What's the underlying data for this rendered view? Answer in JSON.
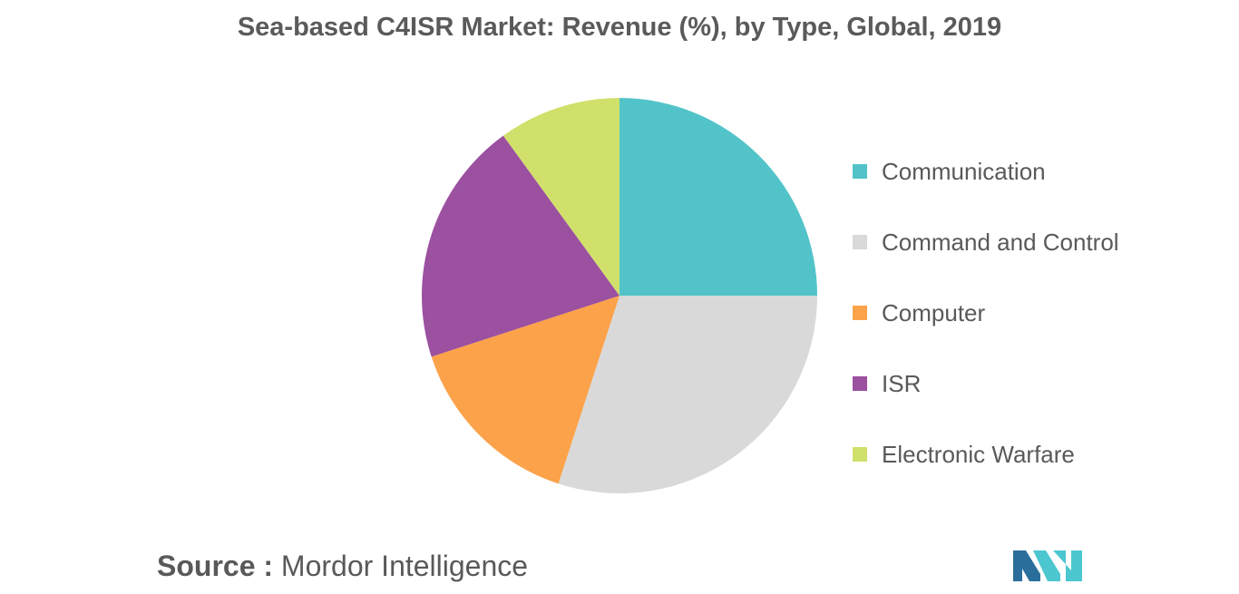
{
  "chart_data": {
    "type": "pie",
    "title": "Sea-based C4ISR Market: Revenue (%), by Type, Global, 2019",
    "categories": [
      "Communication",
      "Command and Control",
      "Computer",
      "ISR",
      "Electronic Warfare"
    ],
    "values": [
      25,
      30,
      15,
      20,
      10
    ],
    "colors": [
      "#52c4c9",
      "#d9d9d9",
      "#fba24a",
      "#9b50a0",
      "#d1e06b"
    ],
    "legend_position": "right",
    "start_angle_deg": 0,
    "direction": "clockwise"
  },
  "source": {
    "label": "Source :",
    "text": "Mordor Intelligence"
  },
  "logo": {
    "icon": "mordor-intelligence-logo-icon",
    "colors": [
      "#2a6f9c",
      "#4cc7cf"
    ]
  }
}
